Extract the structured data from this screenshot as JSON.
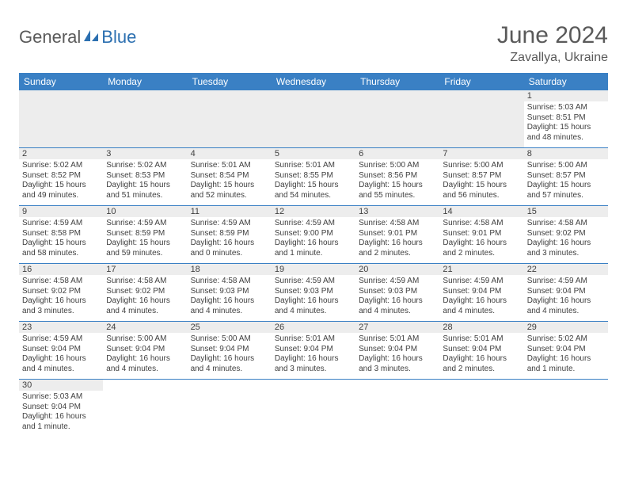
{
  "logo": {
    "part1": "General",
    "part2": "Blue"
  },
  "title": "June 2024",
  "location": "Zavallya, Ukraine",
  "dayHeaders": [
    "Sunday",
    "Monday",
    "Tuesday",
    "Wednesday",
    "Thursday",
    "Friday",
    "Saturday"
  ],
  "colors": {
    "headerBg": "#3a80c4",
    "headerText": "#ffffff",
    "bandBg": "#ededed",
    "text": "#404040",
    "titleText": "#5a5a5a",
    "logoBlue": "#2b6fb0"
  },
  "weeks": [
    [
      null,
      null,
      null,
      null,
      null,
      null,
      {
        "n": "1",
        "sunrise": "Sunrise: 5:03 AM",
        "sunset": "Sunset: 8:51 PM",
        "daylight": "Daylight: 15 hours and 48 minutes."
      }
    ],
    [
      {
        "n": "2",
        "sunrise": "Sunrise: 5:02 AM",
        "sunset": "Sunset: 8:52 PM",
        "daylight": "Daylight: 15 hours and 49 minutes."
      },
      {
        "n": "3",
        "sunrise": "Sunrise: 5:02 AM",
        "sunset": "Sunset: 8:53 PM",
        "daylight": "Daylight: 15 hours and 51 minutes."
      },
      {
        "n": "4",
        "sunrise": "Sunrise: 5:01 AM",
        "sunset": "Sunset: 8:54 PM",
        "daylight": "Daylight: 15 hours and 52 minutes."
      },
      {
        "n": "5",
        "sunrise": "Sunrise: 5:01 AM",
        "sunset": "Sunset: 8:55 PM",
        "daylight": "Daylight: 15 hours and 54 minutes."
      },
      {
        "n": "6",
        "sunrise": "Sunrise: 5:00 AM",
        "sunset": "Sunset: 8:56 PM",
        "daylight": "Daylight: 15 hours and 55 minutes."
      },
      {
        "n": "7",
        "sunrise": "Sunrise: 5:00 AM",
        "sunset": "Sunset: 8:57 PM",
        "daylight": "Daylight: 15 hours and 56 minutes."
      },
      {
        "n": "8",
        "sunrise": "Sunrise: 5:00 AM",
        "sunset": "Sunset: 8:57 PM",
        "daylight": "Daylight: 15 hours and 57 minutes."
      }
    ],
    [
      {
        "n": "9",
        "sunrise": "Sunrise: 4:59 AM",
        "sunset": "Sunset: 8:58 PM",
        "daylight": "Daylight: 15 hours and 58 minutes."
      },
      {
        "n": "10",
        "sunrise": "Sunrise: 4:59 AM",
        "sunset": "Sunset: 8:59 PM",
        "daylight": "Daylight: 15 hours and 59 minutes."
      },
      {
        "n": "11",
        "sunrise": "Sunrise: 4:59 AM",
        "sunset": "Sunset: 8:59 PM",
        "daylight": "Daylight: 16 hours and 0 minutes."
      },
      {
        "n": "12",
        "sunrise": "Sunrise: 4:59 AM",
        "sunset": "Sunset: 9:00 PM",
        "daylight": "Daylight: 16 hours and 1 minute."
      },
      {
        "n": "13",
        "sunrise": "Sunrise: 4:58 AM",
        "sunset": "Sunset: 9:01 PM",
        "daylight": "Daylight: 16 hours and 2 minutes."
      },
      {
        "n": "14",
        "sunrise": "Sunrise: 4:58 AM",
        "sunset": "Sunset: 9:01 PM",
        "daylight": "Daylight: 16 hours and 2 minutes."
      },
      {
        "n": "15",
        "sunrise": "Sunrise: 4:58 AM",
        "sunset": "Sunset: 9:02 PM",
        "daylight": "Daylight: 16 hours and 3 minutes."
      }
    ],
    [
      {
        "n": "16",
        "sunrise": "Sunrise: 4:58 AM",
        "sunset": "Sunset: 9:02 PM",
        "daylight": "Daylight: 16 hours and 3 minutes."
      },
      {
        "n": "17",
        "sunrise": "Sunrise: 4:58 AM",
        "sunset": "Sunset: 9:02 PM",
        "daylight": "Daylight: 16 hours and 4 minutes."
      },
      {
        "n": "18",
        "sunrise": "Sunrise: 4:58 AM",
        "sunset": "Sunset: 9:03 PM",
        "daylight": "Daylight: 16 hours and 4 minutes."
      },
      {
        "n": "19",
        "sunrise": "Sunrise: 4:59 AM",
        "sunset": "Sunset: 9:03 PM",
        "daylight": "Daylight: 16 hours and 4 minutes."
      },
      {
        "n": "20",
        "sunrise": "Sunrise: 4:59 AM",
        "sunset": "Sunset: 9:03 PM",
        "daylight": "Daylight: 16 hours and 4 minutes."
      },
      {
        "n": "21",
        "sunrise": "Sunrise: 4:59 AM",
        "sunset": "Sunset: 9:04 PM",
        "daylight": "Daylight: 16 hours and 4 minutes."
      },
      {
        "n": "22",
        "sunrise": "Sunrise: 4:59 AM",
        "sunset": "Sunset: 9:04 PM",
        "daylight": "Daylight: 16 hours and 4 minutes."
      }
    ],
    [
      {
        "n": "23",
        "sunrise": "Sunrise: 4:59 AM",
        "sunset": "Sunset: 9:04 PM",
        "daylight": "Daylight: 16 hours and 4 minutes."
      },
      {
        "n": "24",
        "sunrise": "Sunrise: 5:00 AM",
        "sunset": "Sunset: 9:04 PM",
        "daylight": "Daylight: 16 hours and 4 minutes."
      },
      {
        "n": "25",
        "sunrise": "Sunrise: 5:00 AM",
        "sunset": "Sunset: 9:04 PM",
        "daylight": "Daylight: 16 hours and 4 minutes."
      },
      {
        "n": "26",
        "sunrise": "Sunrise: 5:01 AM",
        "sunset": "Sunset: 9:04 PM",
        "daylight": "Daylight: 16 hours and 3 minutes."
      },
      {
        "n": "27",
        "sunrise": "Sunrise: 5:01 AM",
        "sunset": "Sunset: 9:04 PM",
        "daylight": "Daylight: 16 hours and 3 minutes."
      },
      {
        "n": "28",
        "sunrise": "Sunrise: 5:01 AM",
        "sunset": "Sunset: 9:04 PM",
        "daylight": "Daylight: 16 hours and 2 minutes."
      },
      {
        "n": "29",
        "sunrise": "Sunrise: 5:02 AM",
        "sunset": "Sunset: 9:04 PM",
        "daylight": "Daylight: 16 hours and 1 minute."
      }
    ],
    [
      {
        "n": "30",
        "sunrise": "Sunrise: 5:03 AM",
        "sunset": "Sunset: 9:04 PM",
        "daylight": "Daylight: 16 hours and 1 minute."
      },
      null,
      null,
      null,
      null,
      null,
      null
    ]
  ]
}
